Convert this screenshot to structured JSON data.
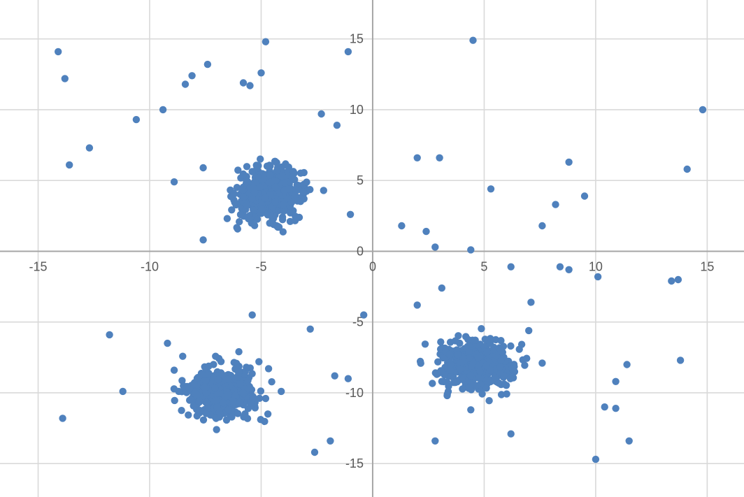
{
  "chart": {
    "background_color": "#ffffff",
    "series_color": "#4f81bd",
    "gridline_color": "#d9d9d9",
    "axis_line_color": "#a6a6a6",
    "tick_label_color": "#595959"
  },
  "chart_data": {
    "type": "scatter",
    "title": "",
    "xlabel": "",
    "ylabel": "",
    "grid": true,
    "legend": false,
    "xlim": [
      -16.71,
      16.65
    ],
    "ylim": [
      -17.36,
      17.75
    ],
    "x_ticks": [
      -15,
      -10,
      -5,
      0,
      5,
      10,
      15
    ],
    "y_ticks": [
      15,
      10,
      5,
      0,
      -5,
      -10,
      -15
    ],
    "x_tick_labels": [
      "-15",
      "-10",
      "-5",
      "0",
      "5",
      "10",
      "15"
    ],
    "y_tick_labels": [
      "15",
      "10",
      "5",
      "0",
      "-5",
      "-10",
      "-15"
    ],
    "marker": {
      "shape": "circle",
      "radius_px": 5.2,
      "color": "#4f81bd"
    },
    "clusters": [
      {
        "name": "cluster-upper-left",
        "center": [
          -4.65,
          4.1
        ],
        "std": [
          0.72,
          0.88
        ],
        "n": 500
      },
      {
        "name": "cluster-lower-left",
        "center": [
          -6.85,
          -9.9
        ],
        "std": [
          0.75,
          0.8
        ],
        "n": 500
      },
      {
        "name": "cluster-lower-right",
        "center": [
          4.68,
          -8.0
        ],
        "std": [
          0.82,
          0.83
        ],
        "n": 500
      }
    ],
    "outliers": [
      [
        -14.1,
        14.1
      ],
      [
        -13.8,
        12.2
      ],
      [
        -13.6,
        6.1
      ],
      [
        -12.7,
        7.3
      ],
      [
        -10.6,
        9.3
      ],
      [
        -9.4,
        10.0
      ],
      [
        -8.9,
        4.9
      ],
      [
        -8.4,
        11.8
      ],
      [
        -8.1,
        12.4
      ],
      [
        -7.6,
        5.9
      ],
      [
        -7.4,
        13.2
      ],
      [
        -7.6,
        0.8
      ],
      [
        -5.8,
        11.9
      ],
      [
        -5.5,
        11.7
      ],
      [
        -5.0,
        12.6
      ],
      [
        -4.8,
        14.8
      ],
      [
        -2.3,
        9.7
      ],
      [
        -2.2,
        4.3
      ],
      [
        -1.6,
        8.9
      ],
      [
        -1.1,
        14.1
      ],
      [
        -1.0,
        2.6
      ],
      [
        1.3,
        1.8
      ],
      [
        2.0,
        6.6
      ],
      [
        2.4,
        1.4
      ],
      [
        2.8,
        0.3
      ],
      [
        3.0,
        6.6
      ],
      [
        4.4,
        0.1
      ],
      [
        4.5,
        14.9
      ],
      [
        5.3,
        4.4
      ],
      [
        7.6,
        1.8
      ],
      [
        8.2,
        3.3
      ],
      [
        8.8,
        6.3
      ],
      [
        9.5,
        3.9
      ],
      [
        14.1,
        5.8
      ],
      [
        14.8,
        10.0
      ],
      [
        6.2,
        -1.1
      ],
      [
        8.4,
        -1.1
      ],
      [
        8.8,
        -1.3
      ],
      [
        10.1,
        -1.8
      ],
      [
        13.4,
        -2.1
      ],
      [
        13.7,
        -2.0
      ],
      [
        3.1,
        -2.6
      ],
      [
        2.0,
        -3.8
      ],
      [
        7.1,
        -3.6
      ],
      [
        7.0,
        -5.6
      ],
      [
        7.6,
        -7.9
      ],
      [
        11.4,
        -8.0
      ],
      [
        13.8,
        -7.7
      ],
      [
        10.9,
        -9.2
      ],
      [
        10.4,
        -11.0
      ],
      [
        10.9,
        -11.1
      ],
      [
        11.5,
        -13.4
      ],
      [
        10.0,
        -14.7
      ],
      [
        4.4,
        -11.2
      ],
      [
        6.2,
        -12.9
      ],
      [
        2.8,
        -13.4
      ],
      [
        -0.4,
        -4.5
      ],
      [
        -5.4,
        -4.5
      ],
      [
        -2.8,
        -5.5
      ],
      [
        -11.8,
        -5.9
      ],
      [
        -9.2,
        -6.5
      ],
      [
        -6.0,
        -7.1
      ],
      [
        -8.9,
        -8.4
      ],
      [
        -5.1,
        -7.8
      ],
      [
        -11.2,
        -9.9
      ],
      [
        -13.9,
        -11.8
      ],
      [
        -4.1,
        -9.9
      ],
      [
        -1.7,
        -8.8
      ],
      [
        -1.1,
        -9.0
      ],
      [
        -4.8,
        -10.4
      ],
      [
        -4.7,
        -11.5
      ],
      [
        -7.0,
        -12.6
      ],
      [
        -1.9,
        -13.4
      ],
      [
        -2.6,
        -14.2
      ]
    ]
  }
}
